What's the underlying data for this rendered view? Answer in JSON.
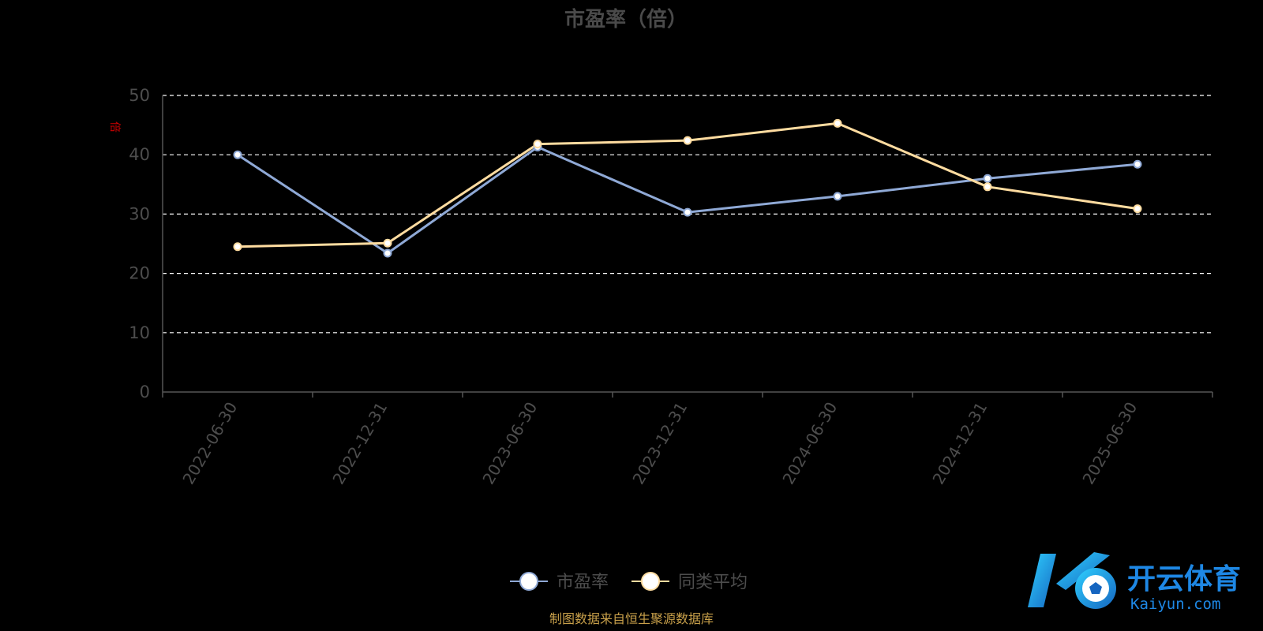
{
  "chart_data": {
    "type": "line",
    "title": "市盈率（倍）",
    "unit_label": "倍",
    "categories": [
      "2022-06-30",
      "2022-12-31",
      "2023-06-30",
      "2023-12-31",
      "2024-06-30",
      "2024-12-31",
      "2025-06-30"
    ],
    "series": [
      {
        "name": "市盈率",
        "color": "#8fa9d6",
        "values": [
          40.0,
          23.4,
          41.3,
          30.3,
          33.0,
          36.0,
          38.4
        ]
      },
      {
        "name": "同类平均",
        "color": "#ffdca0",
        "values": [
          24.5,
          25.1,
          41.8,
          42.4,
          45.3,
          34.6,
          30.9
        ]
      }
    ],
    "yticks": [
      "0",
      "10",
      "20",
      "30",
      "40",
      "50"
    ],
    "ylim": [
      0,
      50
    ],
    "grid": true,
    "legend_position": "bottom-center"
  },
  "source_note": "制图数据来自恒生聚源数据库",
  "logo": {
    "cn": "开云体育",
    "en": "Kaiyun.com"
  }
}
